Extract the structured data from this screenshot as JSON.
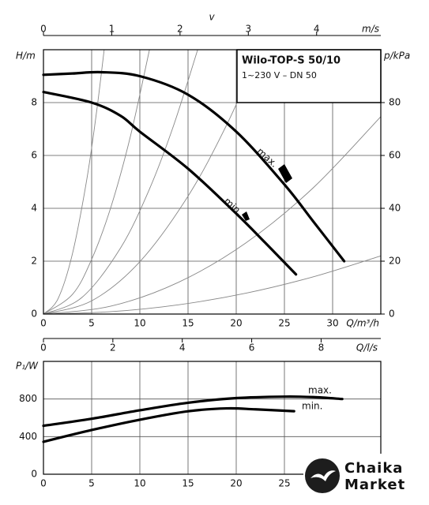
{
  "chart_data": [
    {
      "type": "line",
      "title": "Wilo-TOP-S 50/10",
      "subtitle": "1~230 V – DN 50",
      "x_label": "Q/m³/h",
      "y_label": "H/m",
      "y2_label": "p/kPa",
      "top_axis": {
        "name": "v",
        "label": "m/s",
        "lim": [
          0,
          4.94
        ],
        "ticks": [
          0,
          1,
          2,
          3,
          4
        ]
      },
      "xlim": [
        0,
        35
      ],
      "xticks": [
        0,
        5,
        10,
        15,
        20,
        25,
        30
      ],
      "ylim": [
        0,
        10
      ],
      "yticks": [
        0,
        2,
        4,
        6,
        8
      ],
      "y2lim": [
        0,
        100
      ],
      "y2ticks": [
        0,
        20,
        40,
        60,
        80
      ],
      "grid": true,
      "series": [
        {
          "name": "max.",
          "color": "#000000",
          "x": [
            0,
            3,
            6,
            10,
            15,
            20,
            25,
            28,
            31.2
          ],
          "values": [
            9.05,
            9.1,
            9.15,
            9.0,
            8.3,
            6.9,
            4.9,
            3.5,
            2.0
          ]
        },
        {
          "name": "min.",
          "color": "#000000",
          "x": [
            0,
            5,
            8,
            10,
            15,
            20,
            23,
            26.2
          ],
          "values": [
            8.4,
            8.0,
            7.5,
            6.9,
            5.5,
            3.8,
            2.7,
            1.5
          ]
        }
      ],
      "system_curves": [
        {
          "color": "#888888",
          "x": [
            0,
            1.5,
            3,
            4.5,
            5.5,
            6.3
          ],
          "values": [
            0,
            0.57,
            2.27,
            5.1,
            7.62,
            10
          ]
        },
        {
          "color": "#888888",
          "x": [
            0,
            3,
            5,
            7,
            9,
            11
          ],
          "values": [
            0,
            0.74,
            2.07,
            4.05,
            6.69,
            10
          ]
        },
        {
          "color": "#888888",
          "x": [
            0,
            4,
            8,
            11,
            13.5,
            16
          ],
          "values": [
            0,
            0.63,
            2.5,
            4.73,
            7.13,
            10
          ]
        },
        {
          "color": "#888888",
          "x": [
            0,
            5,
            10,
            15,
            19,
            22.5
          ],
          "values": [
            0,
            0.5,
            1.98,
            4.46,
            7.15,
            10
          ]
        },
        {
          "color": "#888888",
          "x": [
            0,
            7,
            14,
            21,
            28,
            35
          ],
          "values": [
            0,
            0.3,
            1.2,
            2.69,
            4.78,
            7.47
          ]
        },
        {
          "color": "#888888",
          "x": [
            0,
            7,
            14,
            21,
            28,
            35
          ],
          "values": [
            0,
            0.09,
            0.35,
            0.79,
            1.41,
            2.2
          ]
        }
      ]
    },
    {
      "type": "line",
      "y_label": "P₁/W",
      "top_axis": {
        "label": "Q/l/s",
        "lim": [
          0,
          9.72
        ],
        "ticks": [
          0,
          2,
          4,
          6,
          8
        ]
      },
      "xlim": [
        0,
        35
      ],
      "xticks": [
        0,
        5,
        10,
        15,
        20,
        25
      ],
      "ylim": [
        0,
        1200
      ],
      "yticks": [
        0,
        400,
        800
      ],
      "grid": true,
      "series": [
        {
          "name": "max.",
          "color": "#000000",
          "x": [
            0,
            5,
            10,
            15,
            20,
            25,
            28,
            31
          ],
          "values": [
            515,
            590,
            680,
            760,
            810,
            825,
            820,
            800
          ]
        },
        {
          "name": "min.",
          "color": "#000000",
          "x": [
            0,
            5,
            10,
            15,
            19,
            22,
            26
          ],
          "values": [
            345,
            470,
            580,
            670,
            700,
            690,
            670
          ]
        }
      ]
    }
  ],
  "logo": {
    "line1": "Chaika",
    "line2": "Market"
  }
}
